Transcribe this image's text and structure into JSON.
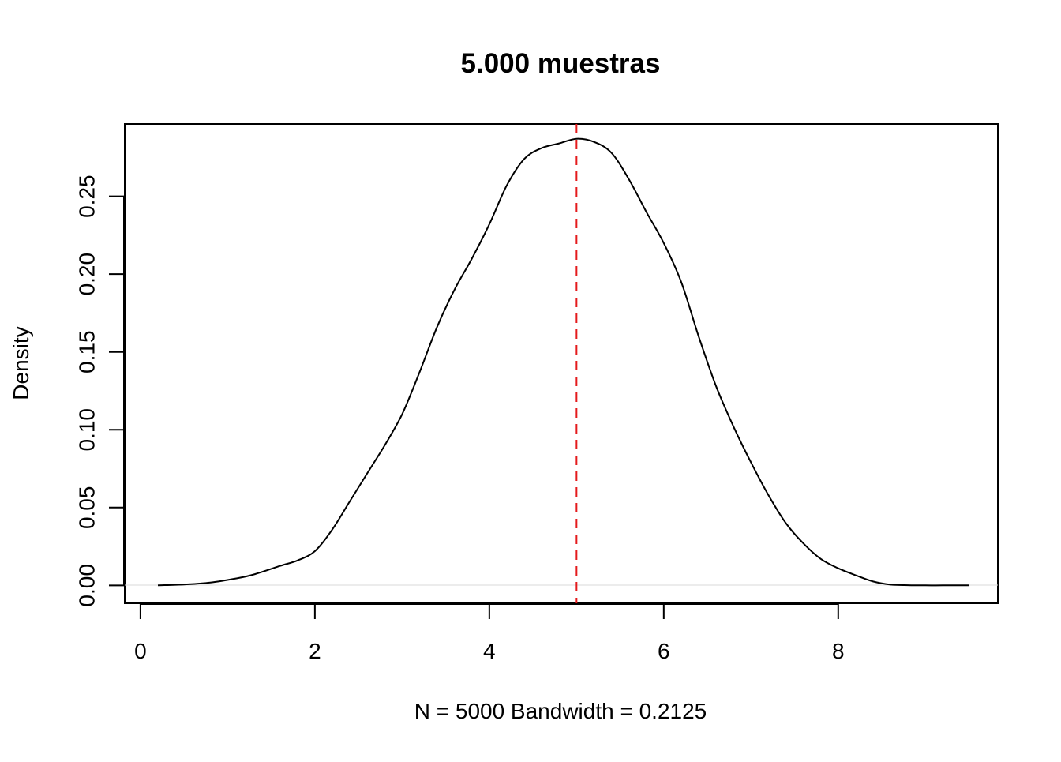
{
  "chart_data": {
    "type": "line",
    "title": "5.000 muestras",
    "xlabel": "N = 5000   Bandwidth = 0.2125",
    "ylabel": "Density",
    "xlim": [
      -0.18,
      9.83
    ],
    "ylim": [
      -0.0115,
      0.2965
    ],
    "x_ticks": [
      0,
      2,
      4,
      6,
      8
    ],
    "x_tick_labels": [
      "0",
      "2",
      "4",
      "6",
      "8"
    ],
    "y_ticks": [
      0,
      0.05,
      0.1,
      0.15,
      0.2,
      0.25
    ],
    "y_tick_labels": [
      "0.00",
      "0.05",
      "0.10",
      "0.15",
      "0.20",
      "0.25"
    ],
    "grid": false,
    "legend": "none",
    "series": [
      {
        "color": "#000000",
        "style": "solid",
        "x": [
          0.2,
          0.5,
          0.8,
          1.1,
          1.3,
          1.6,
          1.8,
          2.0,
          2.2,
          2.4,
          2.6,
          2.8,
          3.0,
          3.2,
          3.4,
          3.6,
          3.8,
          4.0,
          4.2,
          4.4,
          4.6,
          4.8,
          5.0,
          5.2,
          5.4,
          5.6,
          5.8,
          6.0,
          6.2,
          6.4,
          6.6,
          6.8,
          7.0,
          7.2,
          7.4,
          7.6,
          7.8,
          8.0,
          8.2,
          8.4,
          8.6,
          8.8,
          9.0,
          9.2,
          9.5
        ],
        "y": [
          0.0,
          0.0006,
          0.0018,
          0.0045,
          0.007,
          0.0125,
          0.016,
          0.022,
          0.036,
          0.054,
          0.072,
          0.09,
          0.11,
          0.137,
          0.166,
          0.19,
          0.21,
          0.232,
          0.257,
          0.274,
          0.281,
          0.284,
          0.287,
          0.285,
          0.278,
          0.261,
          0.24,
          0.22,
          0.195,
          0.16,
          0.128,
          0.102,
          0.079,
          0.058,
          0.04,
          0.027,
          0.017,
          0.011,
          0.0065,
          0.0025,
          0.0005,
          0.0001,
          0.0,
          0.0,
          0.0
        ]
      },
      {
        "type": "vline",
        "color": "#e41a1c",
        "style": "dashed",
        "x": 5
      }
    ]
  }
}
